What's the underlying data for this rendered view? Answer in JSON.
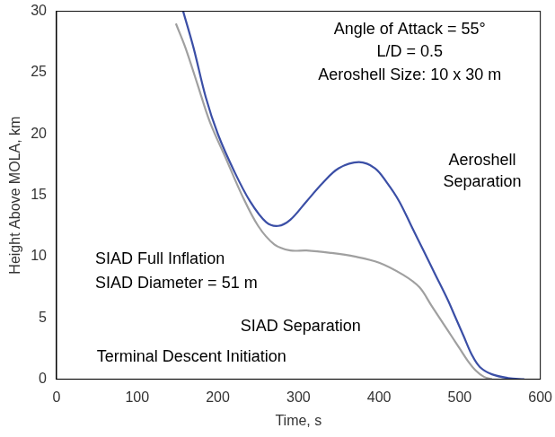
{
  "chart_data": {
    "type": "line",
    "x_label": "Time, s",
    "y_label": "Height Above MOLA, km",
    "xlim": [
      0,
      600
    ],
    "xticks": [
      0,
      100,
      200,
      300,
      400,
      500,
      600
    ],
    "ylim": [
      0,
      30
    ],
    "yticks": [
      0,
      5,
      10,
      15,
      20,
      25,
      30
    ],
    "grid": false,
    "annotations": [
      "Angle of Attack = 55°",
      "L/D = 0.5",
      "Aeroshell Size: 10 x 30 m",
      "Aeroshell",
      "Separation",
      "SIAD Full Inflation",
      "SIAD Diameter = 51 m",
      "SIAD Separation",
      "Terminal Descent Initiation"
    ],
    "series": [
      {
        "color": "#3b4fa6",
        "x": [
          157,
          170,
          185,
          200,
          220,
          240,
          260,
          275,
          290,
          310,
          330,
          350,
          375,
          395,
          410,
          425,
          440,
          455,
          470,
          485,
          495,
          505,
          515,
          525,
          540,
          560,
          580
        ],
        "values": [
          30,
          27,
          23,
          20,
          17,
          14.5,
          12.8,
          12.5,
          13,
          14.5,
          16,
          17.2,
          17.7,
          17.2,
          16,
          14.5,
          12.5,
          10.5,
          8.5,
          6.5,
          5,
          3.5,
          2,
          1,
          0.4,
          0.1,
          0
        ]
      },
      {
        "color": "#a0a0a0",
        "x": [
          148,
          160,
          175,
          190,
          210,
          230,
          250,
          270,
          290,
          310,
          340,
          370,
          400,
          430,
          450,
          465,
          480,
          490,
          500,
          510,
          520,
          530,
          540
        ],
        "values": [
          29,
          27,
          24,
          21,
          18,
          15,
          12.5,
          11,
          10.5,
          10.5,
          10.3,
          10,
          9.5,
          8.5,
          7.5,
          6,
          4.5,
          3.5,
          2.5,
          1.5,
          0.7,
          0.2,
          0
        ]
      }
    ]
  }
}
